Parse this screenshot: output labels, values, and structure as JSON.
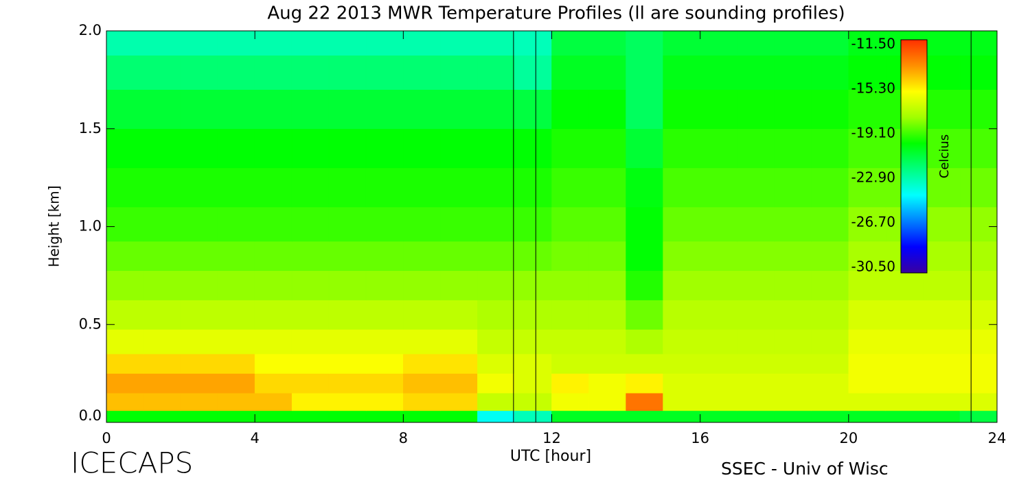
{
  "chart_data": {
    "type": "heatmap",
    "title": "Aug 22 2013 MWR Temperature Profiles (ll are sounding profiles)",
    "xlabel": "UTC [hour]",
    "ylabel": "Height [km]",
    "footer_left": "ICECAPS",
    "footer_right": "SSEC - Univ of Wisc",
    "xlim": [
      0,
      24
    ],
    "xticks": [
      0,
      4,
      8,
      12,
      16,
      20,
      24
    ],
    "ylim": [
      0,
      2
    ],
    "yticks": [
      {
        "value": 0,
        "label": "0.0"
      },
      0.5,
      {
        "value": 1,
        "label": "1.0"
      },
      1.5,
      {
        "value": 2,
        "label": "2.0"
      }
    ],
    "hours": [
      0.5,
      1.5,
      2.5,
      3.5,
      4.5,
      5.5,
      6.5,
      7.5,
      8.5,
      9.5,
      10.5,
      11.5,
      12.5,
      13.5,
      14.5,
      15.5,
      16.5,
      17.5,
      18.5,
      19.5,
      20.5,
      21.5,
      22.5,
      23.5
    ],
    "heights": [
      0.02,
      0.1,
      0.2,
      0.3,
      0.4,
      0.55,
      0.7,
      0.85,
      1.0,
      1.2,
      1.4,
      1.6,
      1.8,
      1.95
    ],
    "z": [
      [
        -20,
        -20,
        -20,
        -20,
        -20,
        -20,
        -20,
        -20,
        -20,
        -20,
        -24,
        -23,
        -20.5,
        -20.5,
        -20.5,
        -20.5,
        -20.5,
        -20.5,
        -20.5,
        -20.5,
        -20.5,
        -20.5,
        -20.5,
        -21
      ],
      [
        -14.5,
        -14.5,
        -14.5,
        -14.5,
        -14.5,
        -15.5,
        -15.5,
        -15.5,
        -15,
        -15,
        -17,
        -17,
        -16,
        -16,
        -13,
        -16.5,
        -16.5,
        -16.5,
        -16.5,
        -16.5,
        -16.5,
        -16.5,
        -16.5,
        -16.5
      ],
      [
        -14,
        -14,
        -14,
        -14,
        -15,
        -15,
        -15,
        -15,
        -14.5,
        -14.5,
        -16,
        -16.5,
        -15.5,
        -16,
        -15.5,
        -16.5,
        -16.5,
        -16.5,
        -16.5,
        -16.5,
        -16,
        -16,
        -16,
        -16
      ],
      [
        -15,
        -15,
        -15,
        -15,
        -15.8,
        -15.8,
        -15.8,
        -15.8,
        -15.2,
        -15.2,
        -16.5,
        -16.5,
        -16.8,
        -16.8,
        -16.8,
        -16.8,
        -16.8,
        -16.8,
        -16.8,
        -16.8,
        -16,
        -16,
        -16,
        -16
      ],
      [
        -16.3,
        -16.3,
        -16.3,
        -16.3,
        -16.3,
        -16.3,
        -16.3,
        -16.3,
        -16.3,
        -16.3,
        -17,
        -17,
        -17,
        -17,
        -17.5,
        -17,
        -17,
        -17,
        -17,
        -17,
        -16.2,
        -16.2,
        -16.2,
        -16.2
      ],
      [
        -17.2,
        -17.2,
        -17.2,
        -17.2,
        -17.2,
        -17.2,
        -17.2,
        -17.2,
        -17.2,
        -17.2,
        -17.5,
        -17.5,
        -17.5,
        -17.5,
        -18.5,
        -17.3,
        -17.3,
        -17.3,
        -17.3,
        -17.3,
        -16.6,
        -16.6,
        -16.6,
        -16.6
      ],
      [
        -18,
        -18,
        -18,
        -18,
        -18,
        -18,
        -18,
        -18,
        -18,
        -18,
        -18,
        -18,
        -18,
        -18,
        -19.5,
        -17.8,
        -17.8,
        -17.8,
        -17.8,
        -17.8,
        -17.2,
        -17.2,
        -17.2,
        -17.2
      ],
      [
        -18.6,
        -18.6,
        -18.6,
        -18.6,
        -18.6,
        -18.6,
        -18.6,
        -18.6,
        -18.6,
        -18.6,
        -18.6,
        -18.6,
        -18.4,
        -18.4,
        -20,
        -18.2,
        -18.2,
        -18.2,
        -18.2,
        -18.2,
        -17.6,
        -17.6,
        -17.6,
        -17.6
      ],
      [
        -19.2,
        -19.2,
        -19.2,
        -19.2,
        -19.2,
        -19.2,
        -19.2,
        -19.2,
        -19.2,
        -19.2,
        -19.2,
        -19.2,
        -18.8,
        -18.8,
        -20,
        -18.6,
        -18.6,
        -18.6,
        -18.6,
        -18.6,
        -18,
        -18,
        -18,
        -18
      ],
      [
        -19.6,
        -19.6,
        -19.6,
        -19.6,
        -19.6,
        -19.6,
        -19.6,
        -19.6,
        -19.6,
        -19.6,
        -19.6,
        -19.6,
        -19.2,
        -19.2,
        -20.2,
        -19,
        -19,
        -19,
        -19,
        -19,
        -18.5,
        -18.5,
        -18.5,
        -18.5
      ],
      [
        -20,
        -20,
        -20,
        -20,
        -20,
        -20,
        -20,
        -20,
        -20,
        -20,
        -20,
        -20,
        -19.6,
        -19.6,
        -20.8,
        -19.4,
        -19.4,
        -19.4,
        -19.4,
        -19.4,
        -19,
        -19,
        -19,
        -19
      ],
      [
        -20.8,
        -20.8,
        -20.8,
        -20.8,
        -20.8,
        -20.8,
        -20.8,
        -20.8,
        -20.8,
        -20.8,
        -20.8,
        -21,
        -20,
        -20,
        -21.5,
        -19.8,
        -19.8,
        -19.8,
        -19.8,
        -19.8,
        -19.5,
        -19.5,
        -19.5,
        -19.5
      ],
      [
        -21.8,
        -21.8,
        -21.8,
        -21.8,
        -21.8,
        -21.8,
        -21.8,
        -21.8,
        -21.8,
        -21.8,
        -21.8,
        -22.5,
        -20.5,
        -20.5,
        -21.5,
        -20.3,
        -20.3,
        -20.3,
        -20.3,
        -20.3,
        -20,
        -20,
        -20,
        -20
      ],
      [
        -22.8,
        -22.8,
        -22.8,
        -22.8,
        -22.8,
        -22.8,
        -22.8,
        -22.8,
        -22.8,
        -22.8,
        -22.8,
        -23,
        -21,
        -21,
        -21.5,
        -20.8,
        -20.8,
        -20.8,
        -20.8,
        -20.8,
        -20.3,
        -20.3,
        -20.3,
        -20.3
      ]
    ],
    "soundings": [
      10.97,
      11.57,
      23.3
    ],
    "colorbar": {
      "label": "Celcius",
      "range": [
        -30.5,
        -11.5
      ],
      "ticks": [
        {
          "value": -11.5,
          "label": "-11.50"
        },
        {
          "value": -15.3,
          "label": "-15.30"
        },
        {
          "value": -19.1,
          "label": "-19.10"
        },
        {
          "value": -22.9,
          "label": "-22.90"
        },
        {
          "value": -26.7,
          "label": "-26.70"
        },
        {
          "value": -30.5,
          "label": "-30.50"
        }
      ],
      "colors": [
        "#3a00a0",
        "#0000ff",
        "#0080ff",
        "#00ffff",
        "#00ff80",
        "#00ff00",
        "#a0ff00",
        "#ffff00",
        "#ff9000",
        "#ff3000"
      ]
    }
  }
}
